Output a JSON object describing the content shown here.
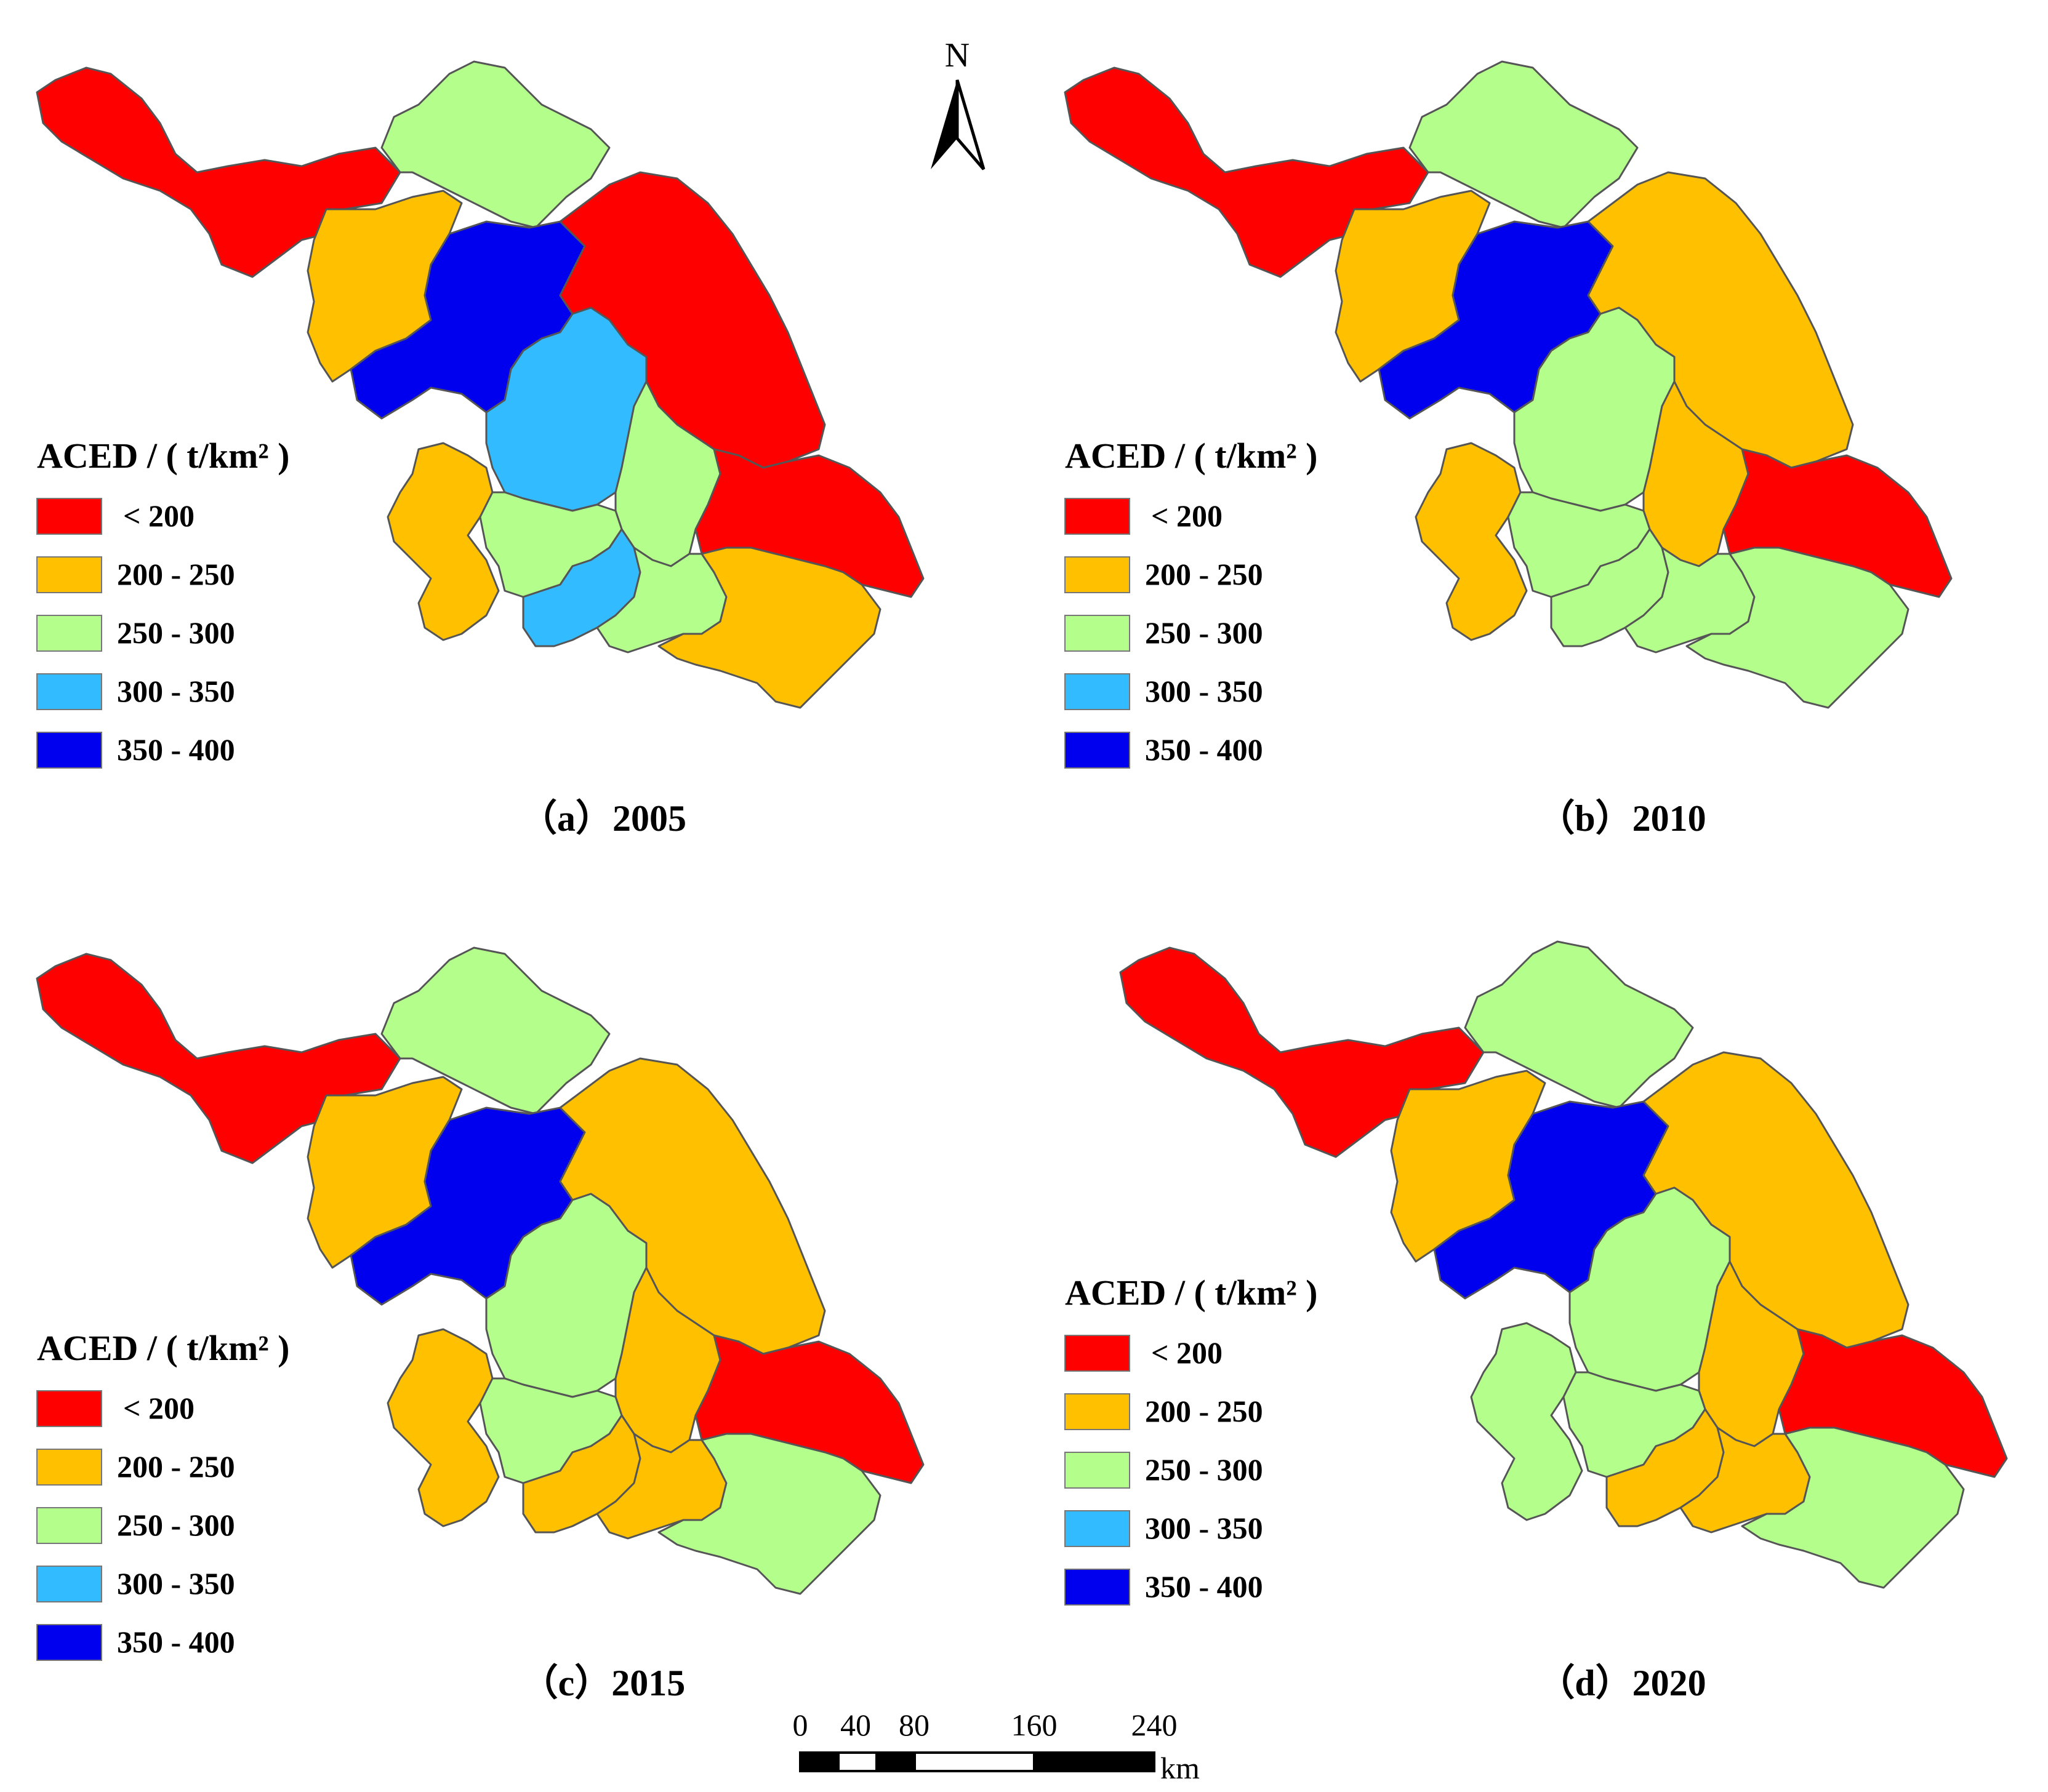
{
  "legend": {
    "title": "ACED / ( t/km² )",
    "classes": [
      {
        "label": "< 200",
        "color": "#ff0000"
      },
      {
        "label": "200 - 250",
        "color": "#ffc000"
      },
      {
        "label": "250 - 300",
        "color": "#b4ff8c"
      },
      {
        "label": "300 - 350",
        "color": "#33bbff"
      },
      {
        "label": "350 - 400",
        "color": "#0000ee"
      }
    ]
  },
  "panels": [
    {
      "caption": "（a）2005",
      "year": "2005",
      "classes": {
        "xuzhou": 0,
        "lianyungang": 2,
        "suqian": 1,
        "huaian": 4,
        "yancheng": 0,
        "yangzhou": 3,
        "taizhou": 2,
        "nantong": 0,
        "nanjing": 1,
        "zhenjiang": 2,
        "changzhou": 3,
        "wuxi": 2,
        "suzhou": 1
      }
    },
    {
      "caption": "（b）2010",
      "year": "2010",
      "classes": {
        "xuzhou": 0,
        "lianyungang": 2,
        "suqian": 1,
        "huaian": 4,
        "yancheng": 1,
        "yangzhou": 2,
        "taizhou": 1,
        "nantong": 0,
        "nanjing": 1,
        "zhenjiang": 2,
        "changzhou": 2,
        "wuxi": 2,
        "suzhou": 2
      }
    },
    {
      "caption": "（c）2015",
      "year": "2015",
      "classes": {
        "xuzhou": 0,
        "lianyungang": 2,
        "suqian": 1,
        "huaian": 4,
        "yancheng": 1,
        "yangzhou": 2,
        "taizhou": 1,
        "nantong": 0,
        "nanjing": 1,
        "zhenjiang": 2,
        "changzhou": 1,
        "wuxi": 1,
        "suzhou": 2
      }
    },
    {
      "caption": "（d）2020",
      "year": "2020",
      "classes": {
        "xuzhou": 0,
        "lianyungang": 2,
        "suqian": 1,
        "huaian": 4,
        "yancheng": 1,
        "yangzhou": 2,
        "taizhou": 1,
        "nantong": 0,
        "nanjing": 2,
        "zhenjiang": 2,
        "changzhou": 1,
        "wuxi": 1,
        "suzhou": 2
      }
    }
  ],
  "north_arrow": {
    "label": "N"
  },
  "scale_bar": {
    "ticks": [
      "0",
      "40",
      "80",
      "160",
      "240"
    ],
    "unit": "km"
  },
  "colors": {
    "border": "#555555",
    "background": "#ffffff"
  }
}
